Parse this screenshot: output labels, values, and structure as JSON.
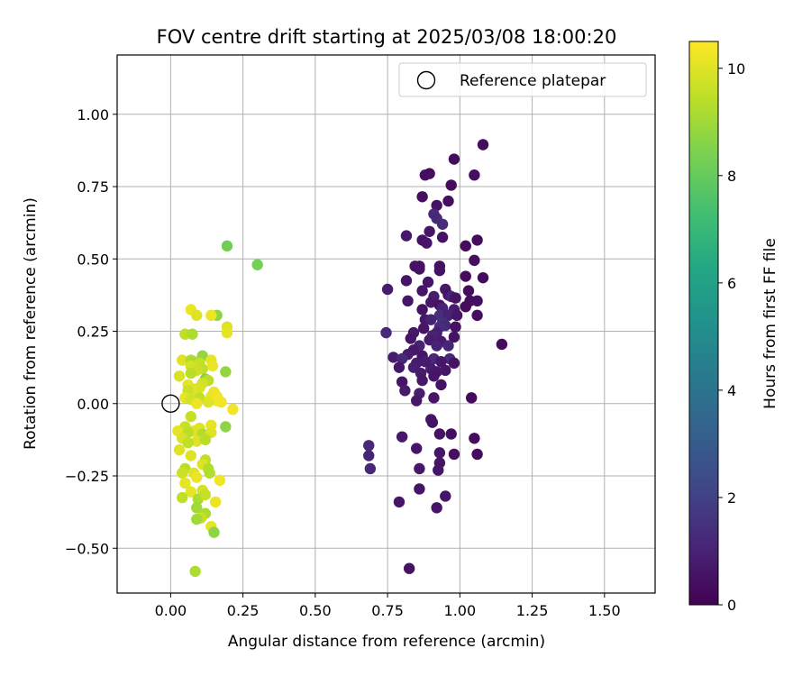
{
  "chart_data": {
    "type": "scatter",
    "title": "FOV centre drift starting at 2025/03/08 18:00:20",
    "xlabel": "Angular distance from reference (arcmin)",
    "ylabel": "Rotation from reference (arcmin)",
    "xlim": [
      -0.185,
      1.675
    ],
    "ylim": [
      -0.655,
      1.205
    ],
    "xticks": [
      0.0,
      0.25,
      0.5,
      0.75,
      1.0,
      1.25,
      1.5
    ],
    "xtick_labels": [
      "0.00",
      "0.25",
      "0.50",
      "0.75",
      "1.00",
      "1.25",
      "1.50"
    ],
    "yticks": [
      -0.5,
      -0.25,
      0.0,
      0.25,
      0.5,
      0.75,
      1.0
    ],
    "ytick_labels": [
      "−0.50",
      "−0.25",
      "0.00",
      "0.25",
      "0.50",
      "0.75",
      "1.00"
    ],
    "grid": true,
    "legend": {
      "position": "top-right",
      "entries": [
        "Reference platepar"
      ]
    },
    "reference": {
      "x": 0.0,
      "y": 0.0
    },
    "colorbar": {
      "label": "Hours from first FF file",
      "range": [
        0,
        10.5
      ],
      "ticks": [
        0,
        2,
        4,
        6,
        8,
        10
      ],
      "tick_labels": [
        "0",
        "2",
        "4",
        "6",
        "8",
        "10"
      ],
      "colormap": "viridis"
    },
    "points": [
      [
        1.08,
        0.895,
        0.3
      ],
      [
        0.98,
        0.845,
        0.3
      ],
      [
        0.895,
        0.795,
        0.4
      ],
      [
        0.88,
        0.79,
        0.4
      ],
      [
        1.05,
        0.79,
        0.4
      ],
      [
        0.97,
        0.755,
        0.3
      ],
      [
        0.87,
        0.715,
        0.4
      ],
      [
        0.96,
        0.7,
        0.4
      ],
      [
        0.92,
        0.685,
        0.5
      ],
      [
        0.91,
        0.655,
        1.2
      ],
      [
        0.92,
        0.64,
        1.2
      ],
      [
        0.94,
        0.62,
        1.3
      ],
      [
        0.895,
        0.595,
        0.6
      ],
      [
        0.815,
        0.58,
        0.7
      ],
      [
        0.87,
        0.565,
        0.5
      ],
      [
        0.94,
        0.575,
        0.5
      ],
      [
        1.06,
        0.565,
        0.3
      ],
      [
        0.885,
        0.555,
        0.6
      ],
      [
        1.02,
        0.545,
        0.3
      ],
      [
        1.05,
        0.495,
        0.4
      ],
      [
        0.845,
        0.475,
        0.5
      ],
      [
        0.86,
        0.475,
        0.5
      ],
      [
        0.93,
        0.475,
        0.5
      ],
      [
        0.86,
        0.465,
        0.5
      ],
      [
        0.93,
        0.46,
        0.5
      ],
      [
        1.02,
        0.44,
        0.3
      ],
      [
        1.08,
        0.435,
        0.3
      ],
      [
        0.815,
        0.425,
        0.6
      ],
      [
        0.89,
        0.42,
        0.6
      ],
      [
        0.75,
        0.395,
        0.8
      ],
      [
        0.87,
        0.39,
        0.6
      ],
      [
        0.95,
        0.395,
        0.7
      ],
      [
        0.96,
        0.375,
        0.5
      ],
      [
        1.03,
        0.39,
        0.3
      ],
      [
        0.91,
        0.37,
        0.8
      ],
      [
        0.97,
        0.37,
        1.0
      ],
      [
        0.985,
        0.365,
        0.5
      ],
      [
        0.82,
        0.355,
        0.6
      ],
      [
        0.9,
        0.35,
        0.7
      ],
      [
        0.93,
        0.34,
        0.5
      ],
      [
        1.035,
        0.355,
        0.4
      ],
      [
        1.06,
        0.355,
        0.4
      ],
      [
        0.94,
        0.33,
        1.0
      ],
      [
        0.98,
        0.325,
        0.8
      ],
      [
        0.87,
        0.325,
        0.5
      ],
      [
        1.02,
        0.335,
        0.3
      ],
      [
        0.93,
        0.305,
        1.4
      ],
      [
        0.96,
        0.305,
        1.0
      ],
      [
        0.99,
        0.305,
        0.6
      ],
      [
        1.06,
        0.305,
        0.4
      ],
      [
        0.88,
        0.29,
        0.7
      ],
      [
        0.9,
        0.29,
        1.0
      ],
      [
        0.94,
        0.28,
        1.5
      ],
      [
        0.95,
        0.27,
        1.2
      ],
      [
        0.875,
        0.26,
        0.6
      ],
      [
        0.93,
        0.265,
        1.3
      ],
      [
        0.985,
        0.265,
        0.5
      ],
      [
        0.84,
        0.245,
        0.7
      ],
      [
        0.92,
        0.245,
        0.9
      ],
      [
        0.745,
        0.245,
        1.2
      ],
      [
        0.905,
        0.235,
        1.0
      ],
      [
        0.98,
        0.23,
        0.5
      ],
      [
        0.83,
        0.225,
        0.6
      ],
      [
        0.895,
        0.22,
        0.8
      ],
      [
        0.935,
        0.215,
        0.8
      ],
      [
        1.145,
        0.205,
        0.3
      ],
      [
        0.86,
        0.2,
        1.0
      ],
      [
        0.92,
        0.2,
        1.0
      ],
      [
        0.96,
        0.2,
        1.1
      ],
      [
        0.84,
        0.185,
        0.7
      ],
      [
        0.82,
        0.17,
        0.8
      ],
      [
        0.87,
        0.165,
        0.6
      ],
      [
        0.77,
        0.16,
        0.8
      ],
      [
        0.8,
        0.155,
        1.2
      ],
      [
        0.91,
        0.155,
        1.2
      ],
      [
        0.965,
        0.155,
        1.3
      ],
      [
        0.88,
        0.145,
        0.8
      ],
      [
        0.935,
        0.145,
        0.7
      ],
      [
        0.85,
        0.14,
        0.8
      ],
      [
        0.98,
        0.14,
        0.5
      ],
      [
        0.79,
        0.125,
        0.7
      ],
      [
        0.84,
        0.125,
        0.9
      ],
      [
        0.9,
        0.12,
        0.8
      ],
      [
        0.95,
        0.115,
        0.6
      ],
      [
        0.92,
        0.11,
        0.7
      ],
      [
        0.865,
        0.105,
        0.8
      ],
      [
        0.91,
        0.095,
        0.6
      ],
      [
        0.87,
        0.08,
        0.7
      ],
      [
        0.8,
        0.075,
        0.6
      ],
      [
        0.935,
        0.065,
        0.5
      ],
      [
        0.81,
        0.045,
        0.8
      ],
      [
        0.86,
        0.035,
        0.9
      ],
      [
        0.91,
        0.02,
        0.6
      ],
      [
        1.04,
        0.02,
        0.3
      ],
      [
        0.85,
        0.01,
        0.7
      ],
      [
        0.9,
        -0.055,
        0.6
      ],
      [
        0.905,
        -0.065,
        0.5
      ],
      [
        0.97,
        -0.105,
        0.4
      ],
      [
        0.8,
        -0.115,
        0.7
      ],
      [
        0.93,
        -0.105,
        0.5
      ],
      [
        1.05,
        -0.12,
        0.3
      ],
      [
        0.93,
        -0.17,
        0.6
      ],
      [
        0.98,
        -0.175,
        0.4
      ],
      [
        1.06,
        -0.175,
        0.3
      ],
      [
        0.85,
        -0.155,
        0.6
      ],
      [
        0.685,
        -0.145,
        1.2
      ],
      [
        0.685,
        -0.18,
        1.1
      ],
      [
        0.69,
        -0.225,
        1.2
      ],
      [
        0.93,
        -0.205,
        0.6
      ],
      [
        0.86,
        -0.225,
        0.7
      ],
      [
        0.925,
        -0.23,
        0.6
      ],
      [
        0.86,
        -0.295,
        0.6
      ],
      [
        0.95,
        -0.32,
        0.6
      ],
      [
        0.79,
        -0.34,
        0.6
      ],
      [
        0.92,
        -0.36,
        0.6
      ],
      [
        0.825,
        -0.57,
        0.5
      ],
      [
        0.195,
        0.545,
        8.2
      ],
      [
        0.3,
        0.48,
        8.3
      ],
      [
        0.07,
        0.325,
        10.2
      ],
      [
        0.09,
        0.305,
        10.0
      ],
      [
        0.16,
        0.305,
        8.7
      ],
      [
        0.14,
        0.305,
        10.2
      ],
      [
        0.195,
        0.265,
        10.0
      ],
      [
        0.195,
        0.245,
        10.1
      ],
      [
        0.05,
        0.24,
        9.5
      ],
      [
        0.075,
        0.24,
        9.2
      ],
      [
        0.11,
        0.165,
        8.8
      ],
      [
        0.04,
        0.15,
        10.0
      ],
      [
        0.07,
        0.15,
        9.3
      ],
      [
        0.08,
        0.145,
        9.1
      ],
      [
        0.14,
        0.15,
        10.1
      ],
      [
        0.1,
        0.14,
        9.6
      ],
      [
        0.145,
        0.13,
        10.2
      ],
      [
        0.07,
        0.13,
        9.8
      ],
      [
        0.11,
        0.12,
        9.5
      ],
      [
        0.19,
        0.11,
        8.8
      ],
      [
        0.09,
        0.115,
        9.7
      ],
      [
        0.07,
        0.105,
        9.4
      ],
      [
        0.03,
        0.095,
        9.9
      ],
      [
        0.12,
        0.085,
        8.6
      ],
      [
        0.13,
        0.08,
        9.4
      ],
      [
        0.11,
        0.07,
        9.8
      ],
      [
        0.06,
        0.065,
        10.1
      ],
      [
        0.1,
        0.055,
        9.9
      ],
      [
        0.08,
        0.05,
        10.0
      ],
      [
        0.06,
        0.045,
        9.7
      ],
      [
        0.15,
        0.04,
        10.2
      ],
      [
        0.14,
        0.025,
        10.2
      ],
      [
        0.05,
        0.02,
        10.1
      ],
      [
        0.1,
        0.02,
        9.5
      ],
      [
        0.16,
        0.025,
        10.3
      ],
      [
        0.07,
        0.015,
        9.8
      ],
      [
        0.16,
        0.01,
        10.3
      ],
      [
        0.13,
        0.005,
        10.0
      ],
      [
        0.09,
        0.0,
        10.2
      ],
      [
        0.175,
        0.005,
        10.3
      ],
      [
        0.215,
        -0.02,
        10.3
      ],
      [
        0.07,
        -0.045,
        9.6
      ],
      [
        0.14,
        -0.075,
        10.1
      ],
      [
        0.19,
        -0.08,
        8.7
      ],
      [
        0.05,
        -0.08,
        9.6
      ],
      [
        0.1,
        -0.085,
        10.0
      ],
      [
        0.08,
        -0.095,
        10.0
      ],
      [
        0.025,
        -0.095,
        10.1
      ],
      [
        0.06,
        -0.1,
        9.4
      ],
      [
        0.11,
        -0.105,
        9.3
      ],
      [
        0.14,
        -0.1,
        10.0
      ],
      [
        0.04,
        -0.12,
        9.9
      ],
      [
        0.09,
        -0.13,
        10.0
      ],
      [
        0.06,
        -0.135,
        9.5
      ],
      [
        0.12,
        -0.125,
        9.4
      ],
      [
        0.03,
        -0.16,
        10.0
      ],
      [
        0.07,
        -0.18,
        10.0
      ],
      [
        0.12,
        -0.195,
        9.5
      ],
      [
        0.11,
        -0.21,
        10.0
      ],
      [
        0.13,
        -0.225,
        9.3
      ],
      [
        0.05,
        -0.225,
        9.4
      ],
      [
        0.04,
        -0.24,
        9.7
      ],
      [
        0.08,
        -0.24,
        10.0
      ],
      [
        0.135,
        -0.24,
        9.3
      ],
      [
        0.09,
        -0.255,
        10.2
      ],
      [
        0.17,
        -0.265,
        10.3
      ],
      [
        0.05,
        -0.275,
        10.1
      ],
      [
        0.11,
        -0.3,
        9.8
      ],
      [
        0.07,
        -0.305,
        10.1
      ],
      [
        0.04,
        -0.325,
        9.5
      ],
      [
        0.095,
        -0.33,
        9.2
      ],
      [
        0.12,
        -0.315,
        9.6
      ],
      [
        0.155,
        -0.34,
        10.2
      ],
      [
        0.09,
        -0.36,
        9.0
      ],
      [
        0.12,
        -0.38,
        9.2
      ],
      [
        0.105,
        -0.395,
        9.6
      ],
      [
        0.09,
        -0.4,
        9.0
      ],
      [
        0.14,
        -0.425,
        10.1
      ],
      [
        0.15,
        -0.445,
        8.7
      ],
      [
        0.085,
        -0.58,
        9.2
      ]
    ]
  }
}
